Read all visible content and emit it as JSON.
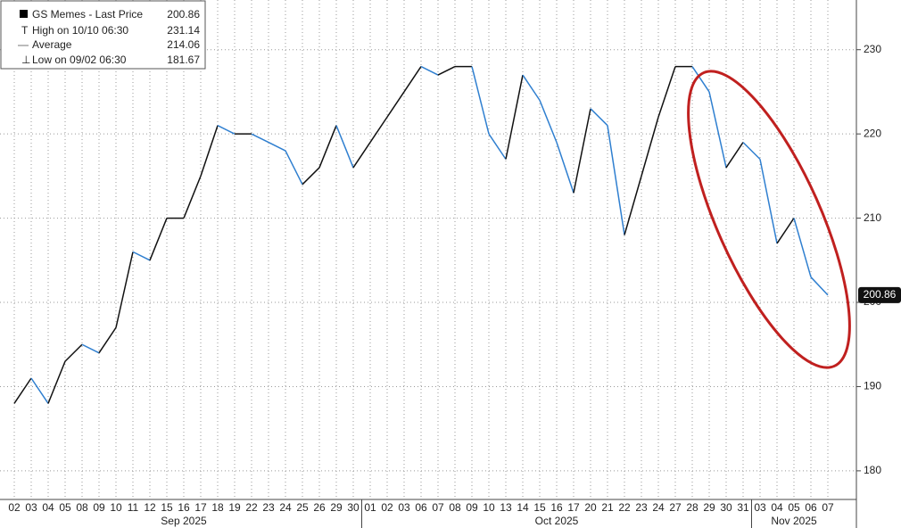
{
  "chart_data": {
    "type": "line",
    "legend": {
      "title": "GS Memes - Last Price",
      "last": 200.86,
      "high_label": "High on 10/10 06:30",
      "high": 231.14,
      "avg_label": "Average",
      "avg": 214.06,
      "low_label": "Low on 09/02 06:30",
      "low": 181.67
    },
    "last_price_label": "200.86",
    "categories": [
      "02",
      "03",
      "04",
      "05",
      "08",
      "09",
      "10",
      "11",
      "12",
      "15",
      "16",
      "17",
      "18",
      "19",
      "22",
      "23",
      "24",
      "25",
      "26",
      "29",
      "30",
      "01",
      "02",
      "03",
      "06",
      "07",
      "08",
      "09",
      "10",
      "13",
      "14",
      "15",
      "16",
      "17",
      "20",
      "21",
      "22",
      "23",
      "24",
      "27",
      "28",
      "29",
      "30",
      "31",
      "03",
      "04",
      "05",
      "06",
      "07"
    ],
    "months": [
      {
        "label": "Sep 2025",
        "first": 0,
        "last": 20
      },
      {
        "label": "Oct 2025",
        "first": 21,
        "last": 43
      },
      {
        "label": "Nov 2025",
        "first": 44,
        "last": 48
      }
    ],
    "series": [
      {
        "name": "GS Memes - Last Price",
        "up_color": "#111111",
        "down_color": "#2f7fd0",
        "values": [
          188,
          191,
          188,
          193,
          195,
          194,
          197,
          206,
          205,
          210,
          210,
          215,
          221,
          220,
          220,
          219,
          218,
          214,
          216,
          221,
          216,
          219,
          222,
          225,
          228,
          227,
          228,
          228,
          220,
          217,
          227,
          224,
          219,
          213,
          223,
          221,
          208,
          215,
          222,
          228,
          228,
          225,
          216,
          219,
          217,
          207,
          210,
          203,
          200.86
        ]
      }
    ],
    "ylim": [
      176.6,
      235.9
    ],
    "yticks": [
      180,
      190,
      200,
      210,
      220,
      230
    ],
    "grid": true
  }
}
